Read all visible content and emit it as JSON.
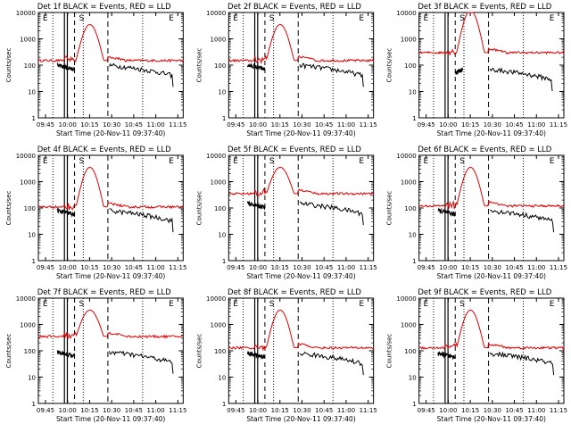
{
  "colors": {
    "events": "#000000",
    "lld": "#e00000",
    "marker": "#000000"
  },
  "shared": {
    "ylabel": "Counts/sec",
    "xlabel": "Start Time (20-Nov-11 09:37:40)",
    "y_ticks": [
      "1",
      "10",
      "100",
      "1000",
      "10000"
    ],
    "x_ticks_a": [
      "09:45",
      "10:00",
      "10:15",
      "10:30",
      "10:45",
      "11:00",
      "11:15"
    ],
    "x_ticks_b": [
      "09:45",
      "10:00",
      "10:15",
      "10:30",
      "10:45",
      "11:00",
      "11:15"
    ],
    "marker_labels": [
      "E",
      "S",
      "E"
    ]
  },
  "chart_data": [
    {
      "type": "line",
      "title": "Det 1f BLACK = Events, RED = LLD",
      "x_ticks": "x_ticks_a",
      "lld_level": 150,
      "lld_peak": 3500,
      "event_level": 100,
      "events_start": 0.13,
      "events_end": 0.93
    },
    {
      "type": "line",
      "title": "Det 2f BLACK = Events, RED = LLD",
      "x_ticks": "x_ticks_b",
      "lld_level": 150,
      "lld_peak": 3500,
      "event_level": 100,
      "events_start": 0.13,
      "events_end": 0.93
    },
    {
      "type": "line",
      "title": "Det 3f BLACK = Events, RED = LLD",
      "x_ticks": "x_ticks_a",
      "lld_level": 300,
      "lld_peak": 12000,
      "event_level": 70,
      "events_start": 0.3,
      "events_end": 0.92
    },
    {
      "type": "line",
      "title": "Det 4f BLACK = Events, RED = LLD",
      "x_ticks": "x_ticks_a",
      "lld_level": 110,
      "lld_peak": 3500,
      "event_level": 80,
      "events_start": 0.13,
      "events_end": 0.93
    },
    {
      "type": "line",
      "title": "Det 5f BLACK = Events, RED = LLD",
      "x_ticks": "x_ticks_b",
      "lld_level": 350,
      "lld_peak": 3500,
      "event_level": 150,
      "events_start": 0.13,
      "events_end": 0.93
    },
    {
      "type": "line",
      "title": "Det 6f BLACK = Events, RED = LLD",
      "x_ticks": "x_ticks_a",
      "lld_level": 120,
      "lld_peak": 3500,
      "event_level": 80,
      "events_start": 0.13,
      "events_end": 0.93
    },
    {
      "type": "line",
      "title": "Det 7f BLACK = Events, RED = LLD",
      "x_ticks": "x_ticks_a",
      "lld_level": 350,
      "lld_peak": 3500,
      "event_level": 90,
      "events_start": 0.13,
      "events_end": 0.93
    },
    {
      "type": "line",
      "title": "Det 8f BLACK = Events, RED = LLD",
      "x_ticks": "x_ticks_b",
      "lld_level": 130,
      "lld_peak": 3500,
      "event_level": 80,
      "events_start": 0.13,
      "events_end": 0.93
    },
    {
      "type": "line",
      "title": "Det 9f BLACK = Events, RED = LLD",
      "x_ticks": "x_ticks_a",
      "lld_level": 130,
      "lld_peak": 3500,
      "event_level": 80,
      "events_start": 0.13,
      "events_end": 0.93
    }
  ]
}
